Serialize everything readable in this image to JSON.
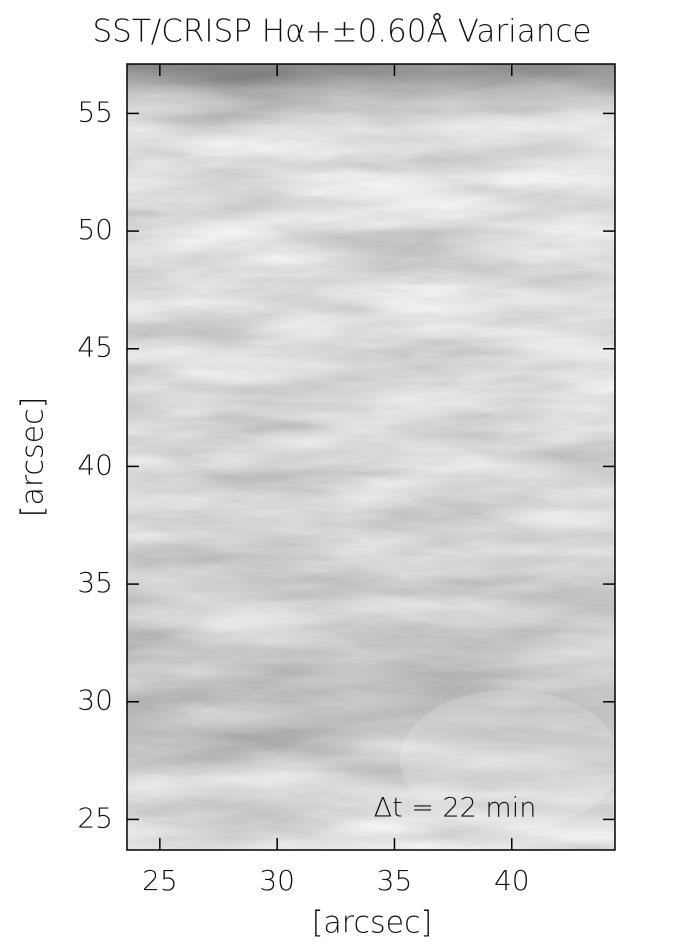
{
  "chart_data": {
    "type": "image",
    "title": "SST/CRISP Hα+±0.60Å Variance",
    "xlabel": "[arcsec]",
    "ylabel": "[arcsec]",
    "annotation": "Δt =  22 min",
    "xlim": [
      23.6,
      44.4
    ],
    "ylim": [
      23.7,
      57.1
    ],
    "xticks": [
      25,
      30,
      35,
      40
    ],
    "yticks": [
      25,
      30,
      35,
      40,
      45,
      50,
      55
    ]
  }
}
